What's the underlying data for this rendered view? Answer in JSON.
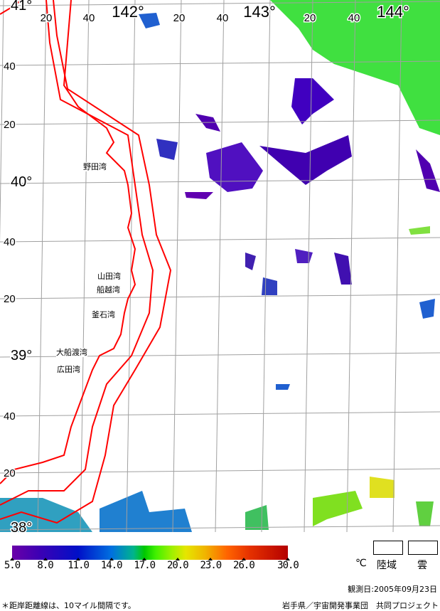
{
  "map": {
    "longitude_labels": [
      "20",
      "40",
      "142°",
      "20",
      "40",
      "143°",
      "20",
      "40",
      "144°"
    ],
    "latitude_labels": [
      "41°",
      "40",
      "20",
      "40°",
      "40",
      "20",
      "39°",
      "40",
      "20",
      "38°"
    ],
    "bays": [
      "野田湾",
      "山田湾",
      "船越湾",
      "釜石湾",
      "大船渡湾",
      "広田湾"
    ],
    "colors": {
      "coastline": "#ff0000",
      "grid": "#a0a0a0"
    }
  },
  "legend": {
    "ticks": [
      "5.0",
      "8.0",
      "11.0",
      "14.0",
      "17.0",
      "20.0",
      "23.0",
      "26.0",
      "30.0"
    ],
    "unit": "℃",
    "land_label": "陸域",
    "cloud_label": "雲"
  },
  "footer": {
    "observation_date": "観測日:2005年09月23日",
    "note": "＊距岸距離線は、10マイル間隔です。",
    "credit": "岩手県／宇宙開発事業団　共同プロジェクト"
  }
}
